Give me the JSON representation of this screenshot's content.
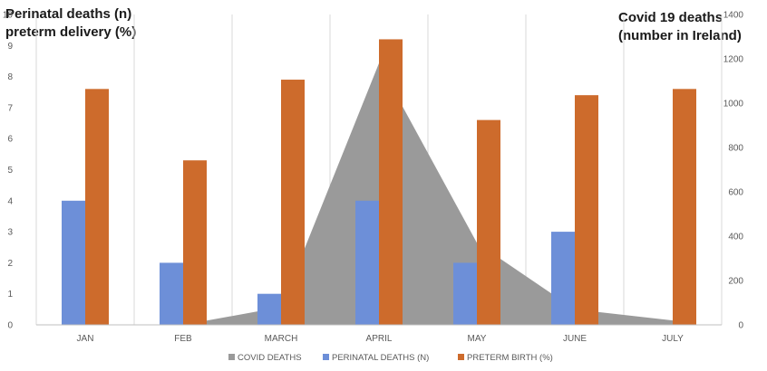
{
  "chart_data": {
    "type": "bar",
    "left_axis_title_lines": [
      "Perinatal deaths (n)",
      "preterm delivery (%)"
    ],
    "right_axis_title_lines": [
      "Covid 19 deaths",
      "(number in Ireland)"
    ],
    "categories": [
      "JAN",
      "FEB",
      "MARCH",
      "APRIL",
      "MAY",
      "JUNE",
      "JULY"
    ],
    "left_axis": {
      "min": 0,
      "max": 10,
      "ticks": [
        "0",
        "1",
        "2",
        "3",
        "4",
        "5",
        "6",
        "7",
        "8",
        "9",
        "10"
      ]
    },
    "right_axis": {
      "min": 0,
      "max": 1400,
      "ticks": [
        "0",
        "200",
        "400",
        "600",
        "800",
        "1000",
        "1200",
        "1400"
      ]
    },
    "series": [
      {
        "name": "COVID DEATHS",
        "chart_kind": "area",
        "axis": "right",
        "color": "#9a9a9a",
        "values": [
          0,
          0,
          80,
          1180,
          370,
          70,
          20
        ]
      },
      {
        "name": "PERINATAL DEATHS (N)",
        "chart_kind": "bar",
        "axis": "left",
        "color": "#6d8fd8",
        "values": [
          4,
          2,
          1,
          4,
          2,
          3,
          0
        ]
      },
      {
        "name": "PRETERM BIRTH (%)",
        "chart_kind": "bar",
        "axis": "left",
        "color": "#cd6b2c",
        "values": [
          7.6,
          5.3,
          7.9,
          9.2,
          6.6,
          7.4,
          7.6
        ]
      }
    ],
    "grid": "vertical-separators",
    "legend_position": "bottom"
  }
}
